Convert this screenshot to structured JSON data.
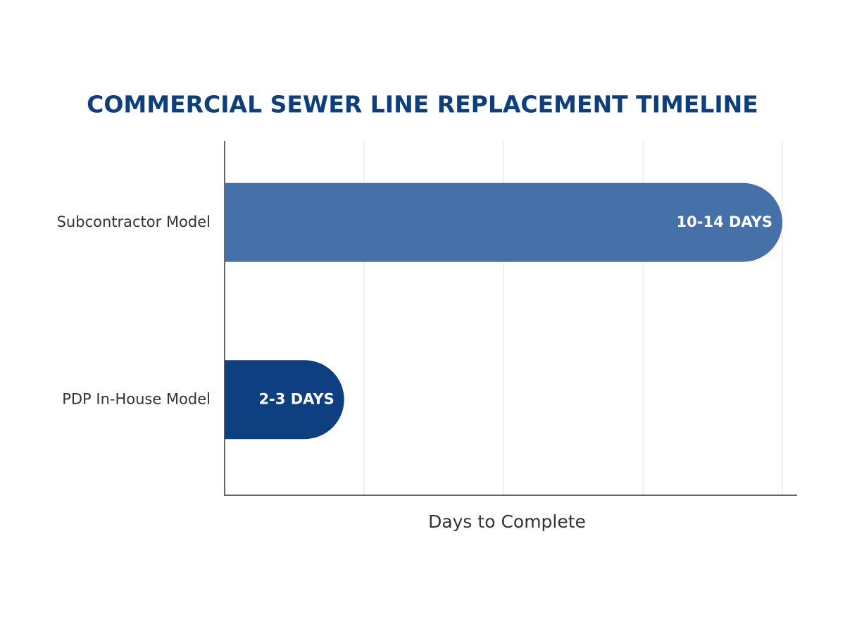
{
  "chart_data": {
    "type": "barh",
    "title": "COMMERCIAL SEWER LINE REPLACEMENT TIMELINE",
    "x_label": "Days to Complete",
    "categories": [
      "Subcontractor Model",
      "PDP In-House Model"
    ],
    "values": [
      14,
      3
    ],
    "value_labels": [
      "10-14 DAYS",
      "2-3 DAYS"
    ],
    "colors": [
      "#4670a8",
      "#0e3f80"
    ],
    "xlim": [
      0,
      14
    ],
    "xticks": [
      0,
      3.5,
      7,
      10.5,
      14
    ],
    "grid": true
  }
}
